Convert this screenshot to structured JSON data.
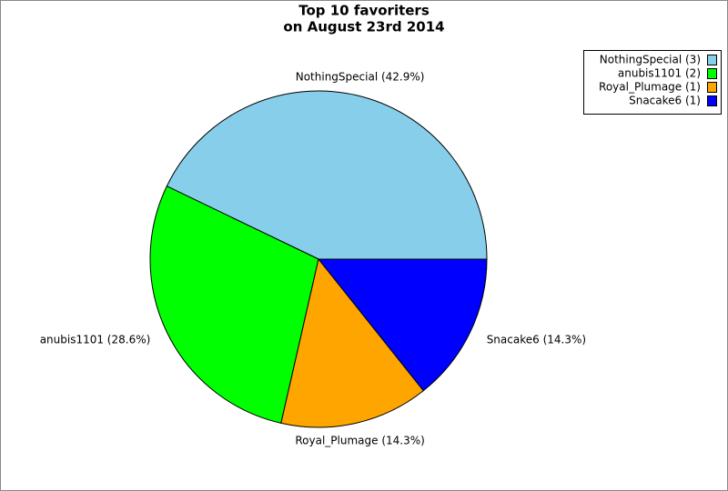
{
  "chart_data": {
    "type": "pie",
    "title": "Top 10 favoriters",
    "subtitle": "on August 23rd 2014",
    "categories": [
      "NothingSpecial (42.9%)",
      "anubis1101 (28.6%)",
      "Royal_Plumage (14.3%)",
      "Snacake6 (14.3%)"
    ],
    "values": [
      42.9,
      28.6,
      14.3,
      14.3
    ],
    "colors": [
      "#87ceeb",
      "#00ff00",
      "#ffa500",
      "#0000ff"
    ],
    "legend": [
      "NothingSpecial (3)",
      "anubis1101 (2)",
      "Royal_Plumage (1)",
      "Snacake6 (1)"
    ],
    "legend_position": "top-right"
  }
}
